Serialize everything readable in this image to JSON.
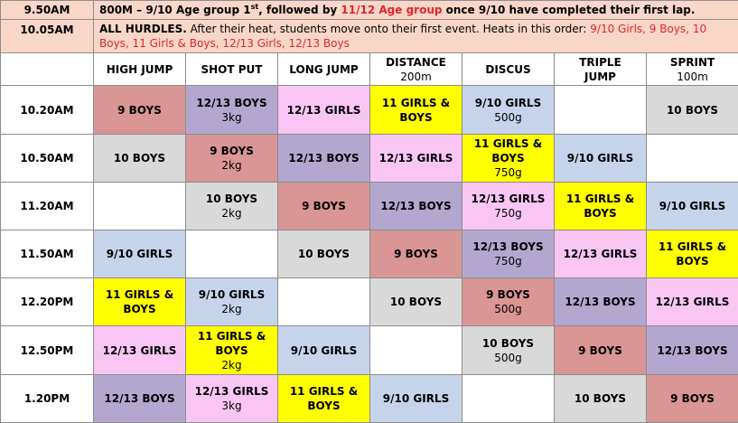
{
  "announcements": [
    {
      "time": "9.50AM",
      "before_red": "800M – 9/10 Age group 1",
      "sup": "st",
      "mid": ", followed by ",
      "red": "11/12 Age group",
      "after": " once 9/10 have completed their first lap."
    },
    {
      "time": "10.05AM",
      "bold": "ALL HURDLES.",
      "normal": " After their heat, students move onto their first event. Heats in this order: ",
      "red": "9/10 Girls, 9 Boys, 10 Boys, 11 Girls & Boys, 12/13 Girls, 12/13 Boys"
    }
  ],
  "events": [
    {
      "line1": "HIGH JUMP",
      "line2": ""
    },
    {
      "line1": "SHOT PUT",
      "line2": ""
    },
    {
      "line1": "LONG JUMP",
      "line2": ""
    },
    {
      "line1": "DISTANCE",
      "line2": "200m"
    },
    {
      "line1": "DISCUS",
      "line2": ""
    },
    {
      "line1": "TRIPLE",
      "line2": "JUMP"
    },
    {
      "line1": "SPRINT",
      "line2": "100m"
    }
  ],
  "schedule": [
    {
      "time": "10.20AM",
      "cells": [
        {
          "text": "9 BOYS",
          "sub": "",
          "color": "red"
        },
        {
          "text": "12/13 BOYS",
          "sub": "3kg",
          "color": "purple"
        },
        {
          "text": "12/13 GIRLS",
          "sub": "",
          "color": "pink"
        },
        {
          "text": "11 GIRLS & BOYS",
          "sub": "",
          "color": "yellow"
        },
        {
          "text": "9/10 GIRLS",
          "sub": "500g",
          "color": "blue"
        },
        {
          "text": "",
          "sub": "",
          "color": "white"
        },
        {
          "text": "10 BOYS",
          "sub": "",
          "color": "gray"
        }
      ]
    },
    {
      "time": "10.50AM",
      "cells": [
        {
          "text": "10 BOYS",
          "sub": "",
          "color": "gray"
        },
        {
          "text": "9 BOYS",
          "sub": "2kg",
          "color": "red"
        },
        {
          "text": "12/13 BOYS",
          "sub": "",
          "color": "purple"
        },
        {
          "text": "12/13 GIRLS",
          "sub": "",
          "color": "pink"
        },
        {
          "text": "11 GIRLS & BOYS",
          "sub": "750g",
          "color": "yellow"
        },
        {
          "text": "9/10 GIRLS",
          "sub": "",
          "color": "blue"
        },
        {
          "text": "",
          "sub": "",
          "color": "white"
        }
      ]
    },
    {
      "time": "11.20AM",
      "cells": [
        {
          "text": "",
          "sub": "",
          "color": "white"
        },
        {
          "text": "10 BOYS",
          "sub": "2kg",
          "color": "gray"
        },
        {
          "text": "9 BOYS",
          "sub": "",
          "color": "red"
        },
        {
          "text": "12/13 BOYS",
          "sub": "",
          "color": "purple"
        },
        {
          "text": "12/13 GIRLS",
          "sub": "750g",
          "color": "pink"
        },
        {
          "text": "11 GIRLS & BOYS",
          "sub": "",
          "color": "yellow"
        },
        {
          "text": "9/10 GIRLS",
          "sub": "",
          "color": "blue"
        }
      ]
    },
    {
      "time": "11.50AM",
      "cells": [
        {
          "text": "9/10 GIRLS",
          "sub": "",
          "color": "blue"
        },
        {
          "text": "",
          "sub": "",
          "color": "white"
        },
        {
          "text": "10 BOYS",
          "sub": "",
          "color": "gray"
        },
        {
          "text": "9 BOYS",
          "sub": "",
          "color": "red"
        },
        {
          "text": "12/13 BOYS",
          "sub": "750g",
          "color": "purple"
        },
        {
          "text": "12/13 GIRLS",
          "sub": "",
          "color": "pink"
        },
        {
          "text": "11 GIRLS & BOYS",
          "sub": "",
          "color": "yellow"
        }
      ]
    },
    {
      "time": "12.20PM",
      "cells": [
        {
          "text": "11 GIRLS & BOYS",
          "sub": "",
          "color": "yellow"
        },
        {
          "text": "9/10 GIRLS",
          "sub": "2kg",
          "color": "blue"
        },
        {
          "text": "",
          "sub": "",
          "color": "white"
        },
        {
          "text": "10 BOYS",
          "sub": "",
          "color": "gray"
        },
        {
          "text": "9 BOYS",
          "sub": "500g",
          "color": "red"
        },
        {
          "text": "12/13 BOYS",
          "sub": "",
          "color": "purple"
        },
        {
          "text": "12/13 GIRLS",
          "sub": "",
          "color": "pink"
        }
      ]
    },
    {
      "time": "12.50PM",
      "cells": [
        {
          "text": "12/13 GIRLS",
          "sub": "",
          "color": "pink"
        },
        {
          "text": "11 GIRLS & BOYS",
          "sub": "2kg",
          "color": "yellow"
        },
        {
          "text": "9/10 GIRLS",
          "sub": "",
          "color": "blue"
        },
        {
          "text": "",
          "sub": "",
          "color": "white"
        },
        {
          "text": "10 BOYS",
          "sub": "500g",
          "color": "gray"
        },
        {
          "text": "9 BOYS",
          "sub": "",
          "color": "red"
        },
        {
          "text": "12/13 BOYS",
          "sub": "",
          "color": "purple"
        }
      ]
    },
    {
      "time": "1.20PM",
      "cells": [
        {
          "text": "12/13 BOYS",
          "sub": "",
          "color": "purple"
        },
        {
          "text": "12/13 GIRLS",
          "sub": "3kg",
          "color": "pink"
        },
        {
          "text": "11 GIRLS & BOYS",
          "sub": "",
          "color": "yellow"
        },
        {
          "text": "9/10 GIRLS",
          "sub": "",
          "color": "blue"
        },
        {
          "text": "",
          "sub": "",
          "color": "white"
        },
        {
          "text": "10 BOYS",
          "sub": "",
          "color": "gray"
        },
        {
          "text": "9 BOYS",
          "sub": "",
          "color": "red"
        }
      ]
    }
  ],
  "colors": {
    "header": "#f9d7c8",
    "red_text": "#e0262b",
    "white": "#ffffff",
    "gray": "#d9d9d9",
    "red": "#d99694",
    "purple": "#b4a7cf",
    "pink": "#f9c6f4",
    "yellow": "#ffff00",
    "blue": "#c5d4ea"
  }
}
